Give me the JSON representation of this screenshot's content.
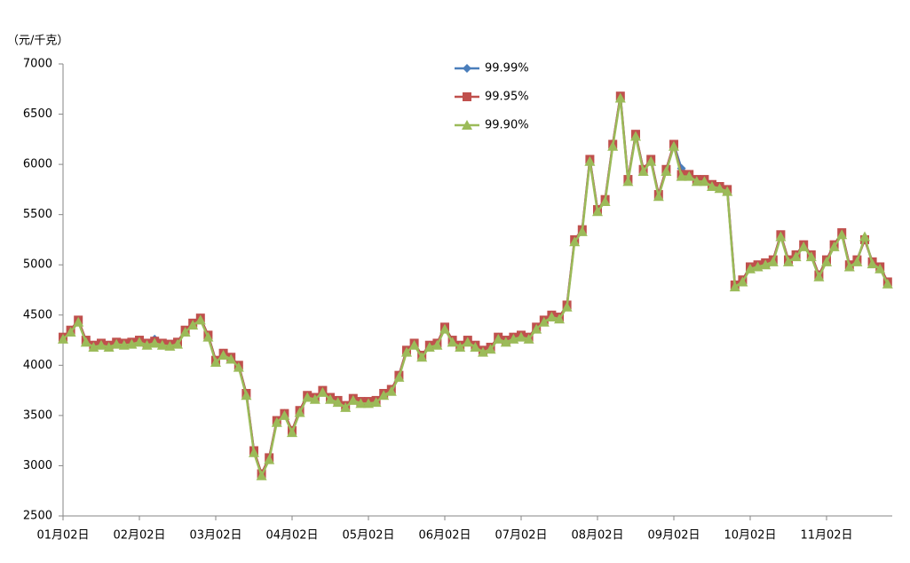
{
  "chart_data": {
    "type": "line",
    "y_label": "（元/千克）",
    "categories": [
      "01月02日",
      null,
      null,
      null,
      null,
      null,
      null,
      null,
      null,
      null,
      "02月02日",
      null,
      null,
      null,
      null,
      null,
      null,
      null,
      null,
      null,
      "03月02日",
      null,
      null,
      null,
      null,
      null,
      null,
      null,
      null,
      null,
      "04月02日",
      null,
      null,
      null,
      null,
      null,
      null,
      null,
      null,
      null,
      "05月02日",
      null,
      null,
      null,
      null,
      null,
      null,
      null,
      null,
      null,
      "06月02日",
      null,
      null,
      null,
      null,
      null,
      null,
      null,
      null,
      null,
      "07月02日",
      null,
      null,
      null,
      null,
      null,
      null,
      null,
      null,
      null,
      "08月02日",
      null,
      null,
      null,
      null,
      null,
      null,
      null,
      null,
      null,
      "09月02日",
      null,
      null,
      null,
      null,
      null,
      null,
      null,
      null,
      null,
      "10月02日",
      null,
      null,
      null,
      null,
      null,
      null,
      null,
      null,
      null,
      "11月02日",
      null,
      null,
      null,
      null,
      null,
      null,
      null,
      null
    ],
    "series": [
      {
        "name": "99.99%",
        "color": "#4a7ebb",
        "marker": "diamond",
        "values": [
          4280,
          4350,
          4450,
          4250,
          4200,
          4220,
          4200,
          4230,
          4220,
          4230,
          4250,
          4220,
          4260,
          4220,
          4210,
          4230,
          4350,
          4420,
          4470,
          4300,
          4050,
          4120,
          4080,
          4000,
          3720,
          3150,
          2920,
          3080,
          3450,
          3520,
          3350,
          3550,
          3700,
          3680,
          3750,
          3680,
          3650,
          3600,
          3670,
          3640,
          3640,
          3650,
          3720,
          3760,
          3900,
          4150,
          4220,
          4100,
          4200,
          4220,
          4380,
          4250,
          4200,
          4250,
          4200,
          4150,
          4180,
          4280,
          4250,
          4280,
          4300,
          4280,
          4380,
          4450,
          4500,
          4480,
          4600,
          5250,
          5350,
          6050,
          5550,
          5650,
          6200,
          6680,
          5850,
          6300,
          5950,
          6050,
          5700,
          5950,
          6200,
          5960,
          5900,
          5850,
          5850,
          5800,
          5780,
          5750,
          4800,
          4850,
          4980,
          5000,
          5020,
          5050,
          5300,
          5050,
          5100,
          5200,
          5100,
          4900,
          5050,
          5200,
          5320,
          5000,
          5050,
          5250,
          5030,
          4980,
          4830
        ]
      },
      {
        "name": "99.95%",
        "color": "#c0504d",
        "marker": "square",
        "values": [
          4280,
          4350,
          4450,
          4250,
          4200,
          4220,
          4200,
          4230,
          4220,
          4230,
          4250,
          4220,
          4240,
          4220,
          4210,
          4230,
          4350,
          4420,
          4470,
          4300,
          4050,
          4120,
          4080,
          4000,
          3720,
          3150,
          2920,
          3080,
          3450,
          3520,
          3350,
          3550,
          3700,
          3680,
          3750,
          3680,
          3650,
          3600,
          3670,
          3640,
          3640,
          3650,
          3720,
          3760,
          3900,
          4150,
          4220,
          4100,
          4200,
          4220,
          4380,
          4250,
          4200,
          4250,
          4200,
          4150,
          4180,
          4280,
          4250,
          4280,
          4300,
          4280,
          4380,
          4450,
          4500,
          4480,
          4600,
          5250,
          5350,
          6050,
          5550,
          5650,
          6200,
          6680,
          5850,
          6300,
          5950,
          6050,
          5700,
          5950,
          6200,
          5900,
          5900,
          5850,
          5850,
          5800,
          5780,
          5750,
          4800,
          4850,
          4980,
          5000,
          5020,
          5050,
          5300,
          5050,
          5100,
          5200,
          5100,
          4900,
          5050,
          5200,
          5320,
          5000,
          5050,
          5250,
          5030,
          4980,
          4830
        ]
      },
      {
        "name": "99.90%",
        "color": "#9bbb59",
        "marker": "triangle",
        "values": [
          4260,
          4330,
          4430,
          4230,
          4180,
          4200,
          4180,
          4210,
          4200,
          4210,
          4230,
          4200,
          4220,
          4200,
          4190,
          4210,
          4330,
          4400,
          4450,
          4280,
          4030,
          4100,
          4060,
          3980,
          3700,
          3130,
          2900,
          3060,
          3430,
          3500,
          3330,
          3530,
          3680,
          3660,
          3730,
          3660,
          3630,
          3580,
          3650,
          3620,
          3620,
          3630,
          3700,
          3740,
          3880,
          4130,
          4200,
          4080,
          4180,
          4200,
          4360,
          4230,
          4180,
          4230,
          4180,
          4130,
          4160,
          4260,
          4230,
          4260,
          4280,
          4260,
          4360,
          4430,
          4480,
          4460,
          4580,
          5230,
          5330,
          6030,
          5530,
          5630,
          6180,
          6660,
          5830,
          6280,
          5930,
          6030,
          5680,
          5930,
          6180,
          5880,
          5880,
          5830,
          5830,
          5780,
          5760,
          5730,
          4780,
          4830,
          4960,
          4980,
          5000,
          5030,
          5280,
          5030,
          5080,
          5180,
          5080,
          4880,
          5030,
          5180,
          5300,
          4980,
          5030,
          5280,
          5010,
          4960,
          4810
        ]
      }
    ],
    "ylim": [
      2500,
      7000
    ],
    "yticks": [
      2500,
      3000,
      3500,
      4000,
      4500,
      5000,
      5500,
      6000,
      6500,
      7000
    ],
    "grid": false,
    "legend": "top"
  }
}
